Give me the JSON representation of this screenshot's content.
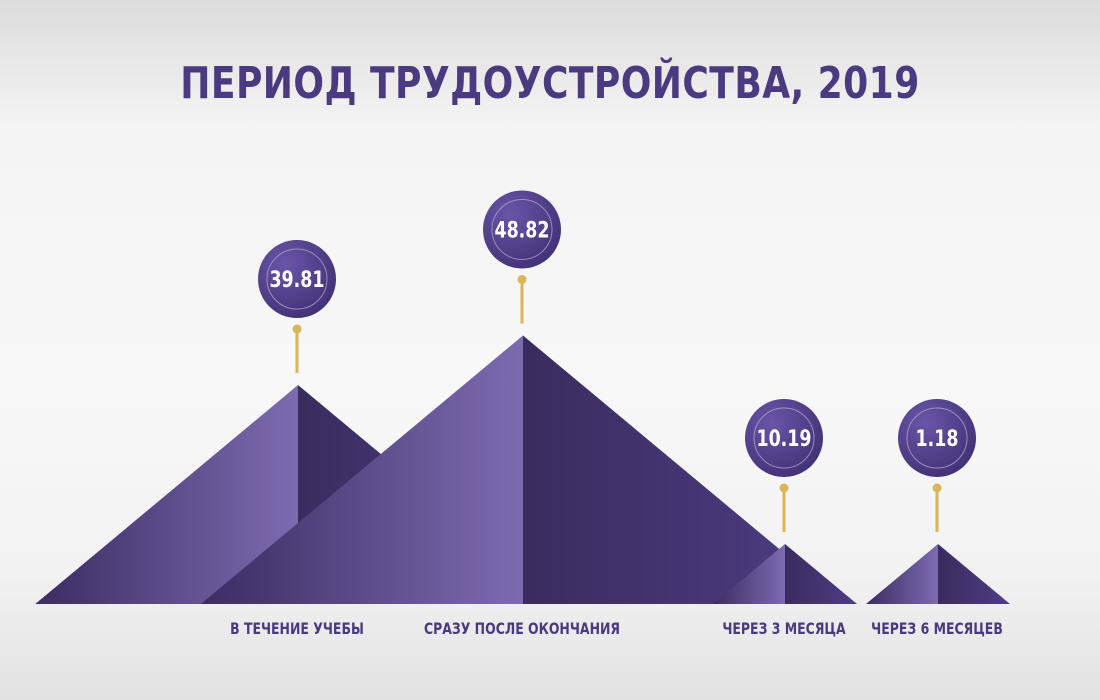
{
  "chart_data": {
    "type": "bar",
    "title": "ПЕРИОД ТРУДОУСТРОЙСТВА, 2019",
    "categories": [
      "В ТЕЧЕНИЕ УЧЕБЫ",
      "СРАЗУ ПОСЛЕ ОКОНЧАНИЯ",
      "ЧЕРЕЗ 3 МЕСЯЦА",
      "ЧЕРЕЗ 6 МЕСЯЦЕВ"
    ],
    "values": [
      39.81,
      48.82,
      10.19,
      1.18
    ],
    "value_labels": [
      "39.81",
      "48.82",
      "10.19",
      "1.18"
    ],
    "colors": {
      "title": "#4a3a80",
      "pyramid_light": "#7a68ae",
      "pyramid_dark": "#3e2f63",
      "bubble": "#4e3c88",
      "pin": "#d9b65a"
    }
  }
}
